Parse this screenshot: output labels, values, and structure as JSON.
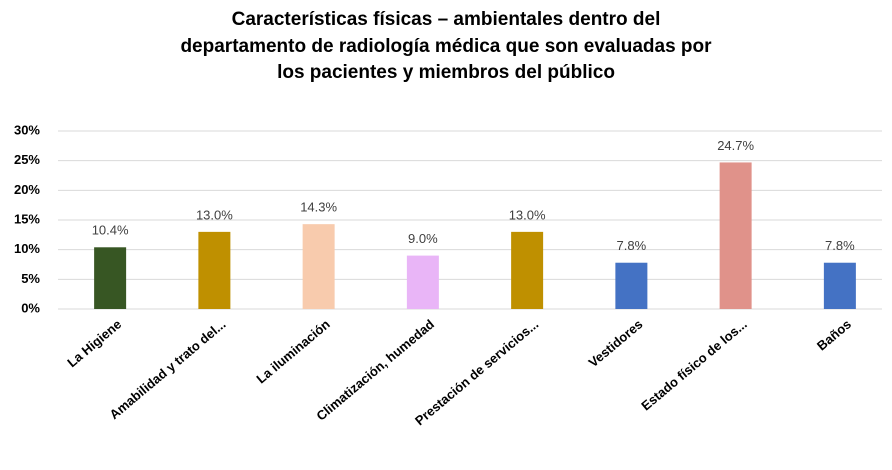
{
  "chart_data": {
    "type": "bar",
    "title": [
      "Características físicas – ambientales dentro del",
      "departamento de radiología médica que son evaluadas por",
      "los pacientes y miembros del público"
    ],
    "categories": [
      "La Higiene",
      "Amabilidad y trato del...",
      "La iluminación",
      "Climatización, humedad",
      "Prestación de servicios...",
      "Vestidores",
      "Estado físico de los...",
      "Baños"
    ],
    "values": [
      10.4,
      13.0,
      14.3,
      9.0,
      13.0,
      7.8,
      24.7,
      7.8
    ],
    "value_labels": [
      "10.4%",
      "13.0%",
      "14.3%",
      "9.0%",
      "13.0%",
      "7.8%",
      "24.7%",
      "7.8%"
    ],
    "colors": [
      "#375623",
      "#bf9000",
      "#f8cbad",
      "#e9b5f7",
      "#bf9000",
      "#4472c4",
      "#e0928a",
      "#4472c4"
    ],
    "ylim": [
      0,
      30
    ],
    "yticks": [
      {
        "value": 0,
        "label": "0%"
      },
      {
        "value": 5,
        "label": "5%"
      },
      {
        "value": 10,
        "label": "10%"
      },
      {
        "value": 15,
        "label": "15%"
      },
      {
        "value": 20,
        "label": "20%"
      },
      {
        "value": 25,
        "label": "25%"
      },
      {
        "value": 30,
        "label": "30%"
      }
    ],
    "grid": true
  }
}
